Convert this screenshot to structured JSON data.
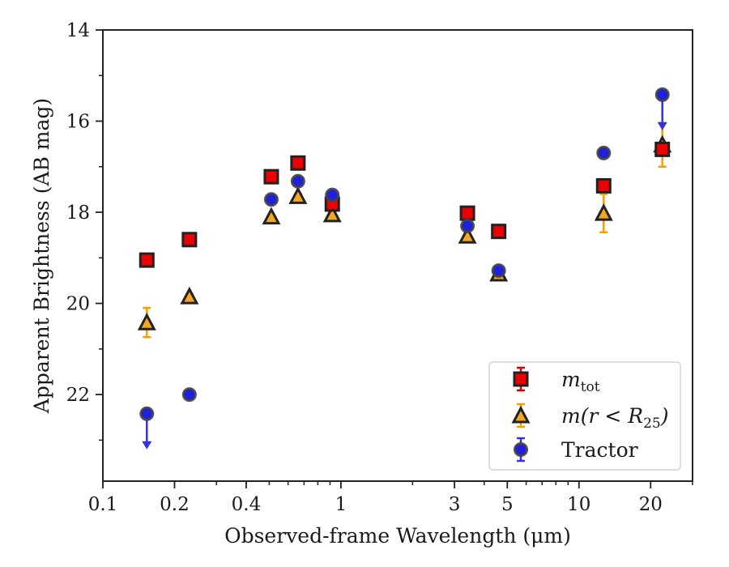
{
  "chart_data": {
    "type": "scatter",
    "title": "",
    "xlabel": "Observed-frame Wavelength (μm)",
    "ylabel": "Apparent Brightness (AB mag)",
    "xscale": "log",
    "xlim": [
      0.1,
      30
    ],
    "ylim": [
      23.9,
      14
    ],
    "y_inverted": true,
    "x_ticks": [
      {
        "value": 0.1,
        "label": "0.1"
      },
      {
        "value": 0.2,
        "label": "0.2"
      },
      {
        "value": 0.4,
        "label": "0.4"
      },
      {
        "value": 1,
        "label": "1"
      },
      {
        "value": 3,
        "label": "3"
      },
      {
        "value": 5,
        "label": "5"
      },
      {
        "value": 10,
        "label": "10"
      },
      {
        "value": 20,
        "label": "20"
      }
    ],
    "y_ticks": [
      {
        "value": 14,
        "label": "14"
      },
      {
        "value": 16,
        "label": "16"
      },
      {
        "value": 18,
        "label": "18"
      },
      {
        "value": 20,
        "label": "20"
      },
      {
        "value": 22,
        "label": "22"
      }
    ],
    "grid": false,
    "legend_position": "bottom-right",
    "series": [
      {
        "name": "m_tot",
        "legend_label": {
          "base": "m",
          "sub": "tot"
        },
        "marker": "square",
        "color": "#ee0000",
        "error_color": "#dd0000",
        "points": [
          {
            "x": 0.153,
            "y": 19.05,
            "err": 0.06
          },
          {
            "x": 0.231,
            "y": 18.6,
            "err": 0.05
          },
          {
            "x": 0.51,
            "y": 17.22,
            "err": 0.05
          },
          {
            "x": 0.66,
            "y": 16.92,
            "err": 0.05
          },
          {
            "x": 0.92,
            "y": 17.82,
            "err": 0.05
          },
          {
            "x": 3.4,
            "y": 18.02,
            "err": 0.05
          },
          {
            "x": 4.6,
            "y": 18.42,
            "err": 0.05
          },
          {
            "x": 12.7,
            "y": 17.42,
            "err": 0.08
          },
          {
            "x": 22.4,
            "y": 16.62,
            "err": 0.1
          }
        ]
      },
      {
        "name": "m(r < R25)",
        "legend_label": {
          "base": "m(r < R",
          "sub": "25",
          "suffix": ")"
        },
        "marker": "triangle",
        "color": "#f5a623",
        "error_color": "#f5a000",
        "points": [
          {
            "x": 0.153,
            "y": 20.42,
            "err": 0.32
          },
          {
            "x": 0.231,
            "y": 19.85,
            "err": 0.05
          },
          {
            "x": 0.51,
            "y": 18.1,
            "err": 0.05
          },
          {
            "x": 0.66,
            "y": 17.65,
            "err": 0.05
          },
          {
            "x": 0.92,
            "y": 18.05,
            "err": 0.05
          },
          {
            "x": 3.4,
            "y": 18.52,
            "err": 0.05
          },
          {
            "x": 4.6,
            "y": 19.35,
            "err": 0.05
          },
          {
            "x": 12.7,
            "y": 18.02,
            "err": 0.42
          },
          {
            "x": 22.4,
            "y": 16.52,
            "err": 0.48
          }
        ]
      },
      {
        "name": "Tractor",
        "legend_label": {
          "base": "Tractor"
        },
        "marker": "circle",
        "color": "#1f1fe0",
        "error_color": "#3333dd",
        "points": [
          {
            "x": 0.153,
            "y": 22.42,
            "upper_limit": true
          },
          {
            "x": 0.231,
            "y": 22.0,
            "err": 0.05
          },
          {
            "x": 0.51,
            "y": 17.72,
            "err": 0.05
          },
          {
            "x": 0.66,
            "y": 17.32,
            "err": 0.05
          },
          {
            "x": 0.92,
            "y": 17.62,
            "err": 0.05
          },
          {
            "x": 3.4,
            "y": 18.3,
            "err": 0.05
          },
          {
            "x": 4.6,
            "y": 19.28,
            "err": 0.05
          },
          {
            "x": 12.7,
            "y": 16.7,
            "err": 0.05
          },
          {
            "x": 22.4,
            "y": 15.42,
            "upper_limit": true
          }
        ]
      }
    ]
  }
}
